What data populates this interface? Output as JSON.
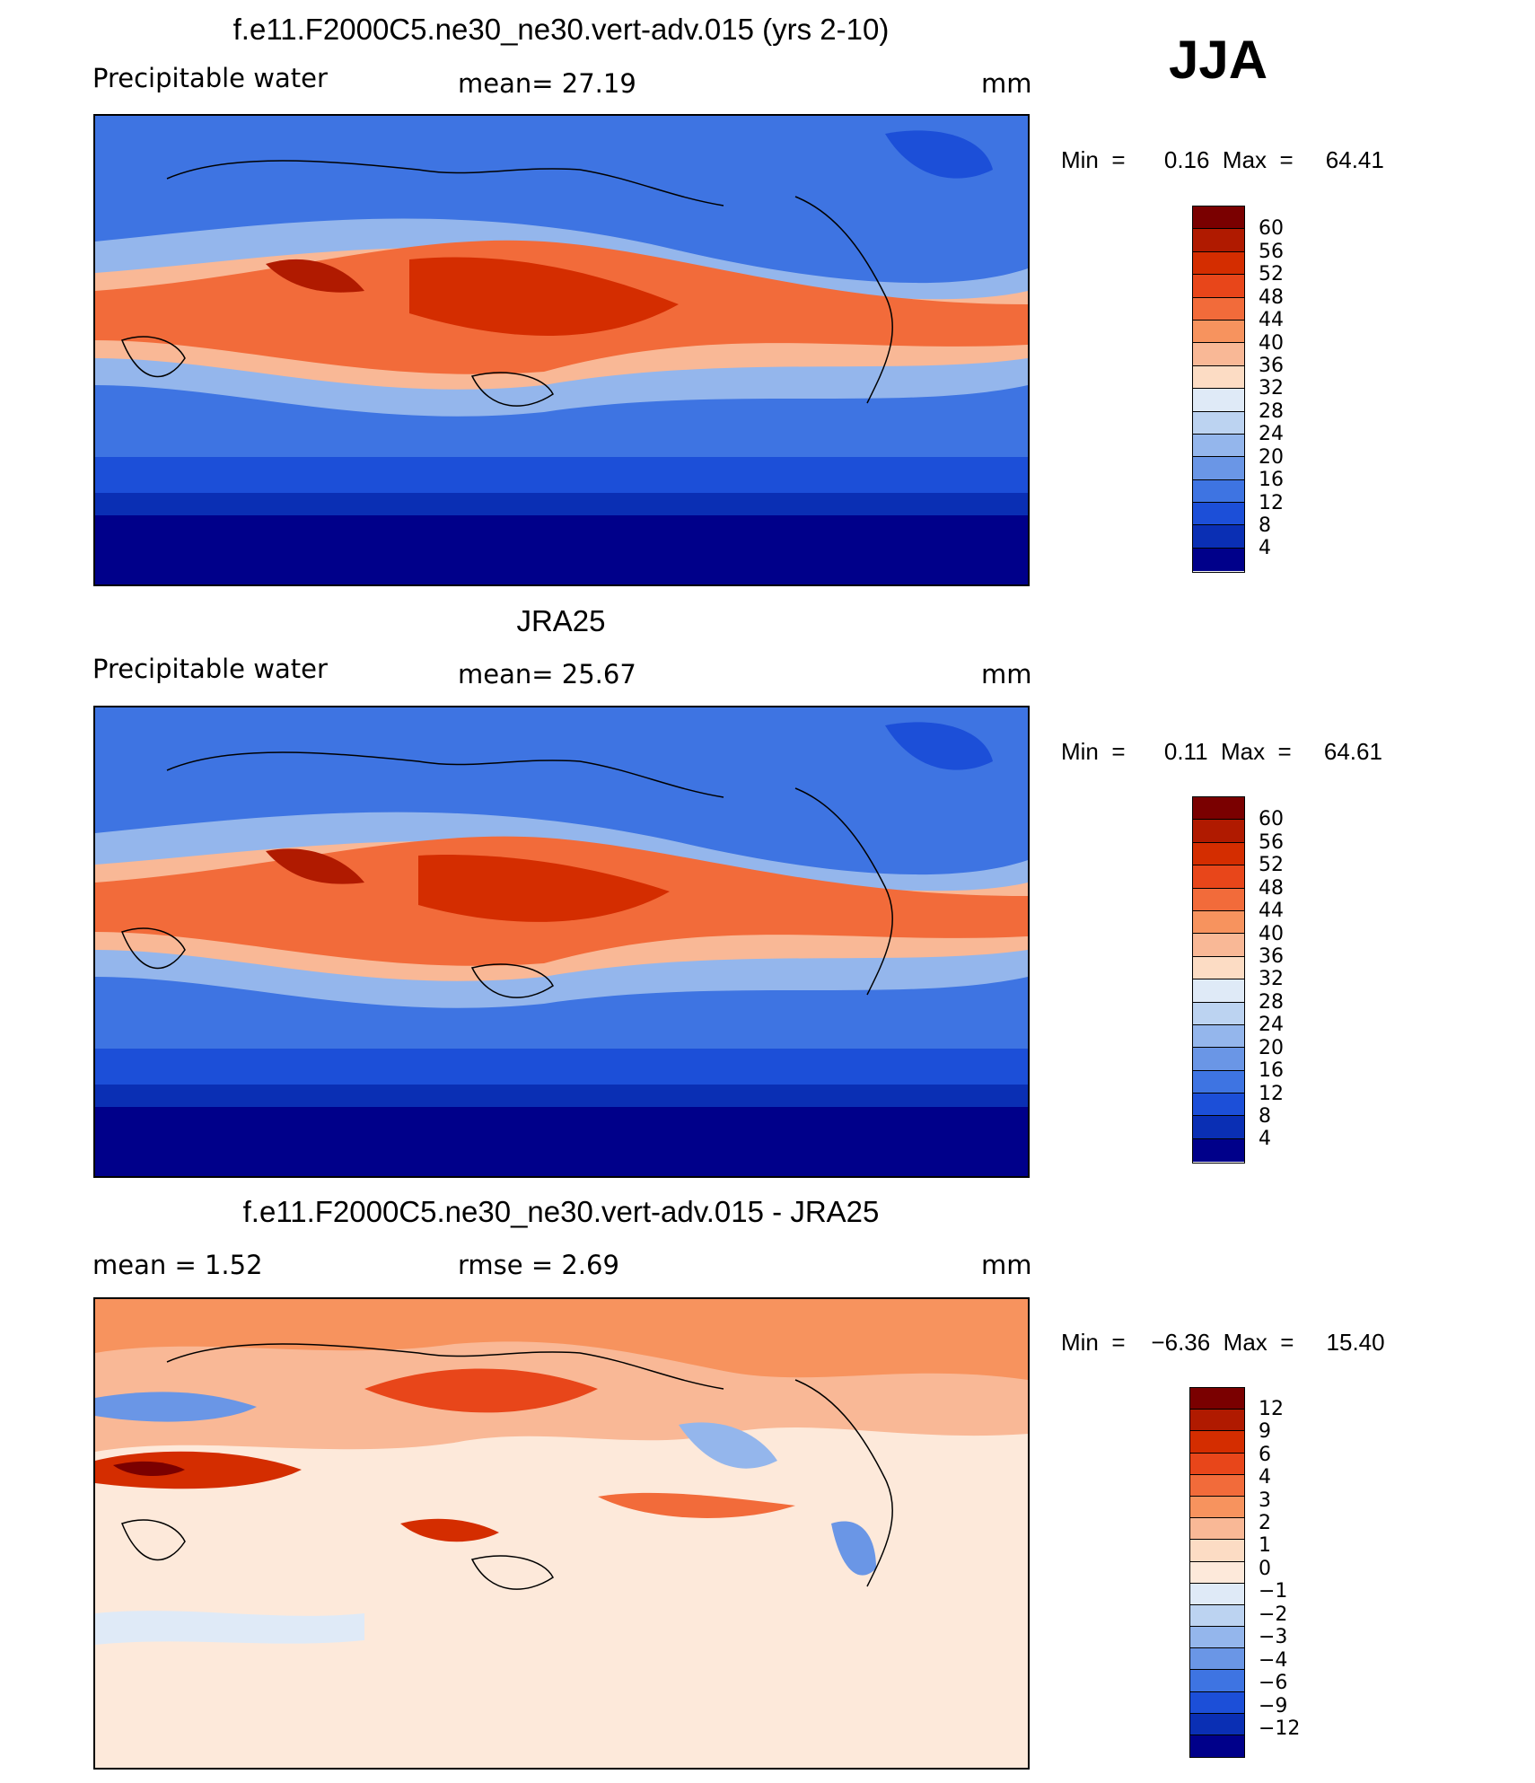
{
  "season": "JJA",
  "panels": [
    {
      "title": "f.e11.F2000C5.ne30_ne30.vert-adv.015 (yrs 2-10)",
      "left_label": "Precipitable  water",
      "center_label": "mean=   27.19",
      "right_label": "mm",
      "minmax": "Min  =      0.16  Max  =     64.41",
      "colorbar_labels": [
        "60",
        "56",
        "52",
        "48",
        "44",
        "40",
        "36",
        "32",
        "28",
        "24",
        "20",
        "16",
        "12",
        "8",
        "4"
      ]
    },
    {
      "title": "JRA25",
      "left_label": "Precipitable  water",
      "center_label": "mean=   25.67",
      "right_label": "mm",
      "minmax": "Min  =      0.11  Max  =     64.61",
      "colorbar_labels": [
        "60",
        "56",
        "52",
        "48",
        "44",
        "40",
        "36",
        "32",
        "28",
        "24",
        "20",
        "16",
        "12",
        "8",
        "4"
      ]
    },
    {
      "title": "f.e11.F2000C5.ne30_ne30.vert-adv.015 - JRA25",
      "left_label": "mean  =      1.52",
      "center_label": "rmse  =      2.69",
      "right_label": "mm",
      "minmax": "Min  =    −6.36  Max  =     15.40",
      "colorbar_labels": [
        "12",
        "9",
        "6",
        "4",
        "3",
        "2",
        "1",
        "0",
        "−1",
        "−2",
        "−3",
        "−4",
        "−6",
        "−9",
        "−12"
      ]
    }
  ],
  "colors": {
    "abs_scale": [
      "#7a0000",
      "#b01a00",
      "#d42d00",
      "#e8461a",
      "#f26b3a",
      "#f7935e",
      "#f9b896",
      "#fcdcc4",
      "#dfeaf7",
      "#bcd3f1",
      "#94b6ec",
      "#6a96e6",
      "#3e74e2",
      "#1c4fd8",
      "#0a2fb4",
      "#00008a"
    ],
    "diff_scale": [
      "#7a0000",
      "#b01a00",
      "#d42d00",
      "#e8461a",
      "#f26b3a",
      "#f7935e",
      "#f9b896",
      "#fcdcc4",
      "#fde9da",
      "#dfeaf7",
      "#bcd3f1",
      "#94b6ec",
      "#6a96e6",
      "#3e74e2",
      "#1c4fd8",
      "#0a2fb4",
      "#00008a"
    ]
  }
}
